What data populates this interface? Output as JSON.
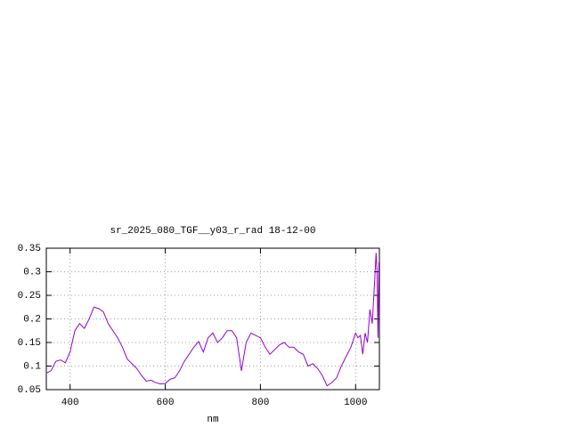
{
  "chart_data": {
    "type": "line",
    "title": "sr_2025_080_TGF__y03_r_rad 18-12-00",
    "x_label": "nm",
    "xlim": [
      350,
      1050
    ],
    "xticks": [
      400,
      600,
      800,
      1000
    ],
    "ylim": [
      0.05,
      0.35
    ],
    "yticks": [
      0.05,
      0.1,
      0.15,
      0.2,
      0.25,
      0.3,
      0.35
    ],
    "grid": true,
    "x": [
      350,
      360,
      370,
      380,
      390,
      400,
      410,
      420,
      430,
      440,
      450,
      460,
      470,
      480,
      490,
      500,
      510,
      520,
      530,
      540,
      550,
      560,
      570,
      580,
      590,
      600,
      610,
      620,
      630,
      640,
      650,
      660,
      670,
      680,
      690,
      700,
      710,
      720,
      730,
      740,
      750,
      760,
      770,
      780,
      790,
      800,
      810,
      820,
      830,
      840,
      850,
      860,
      870,
      880,
      890,
      900,
      910,
      920,
      930,
      940,
      950,
      960,
      970,
      980,
      990,
      1000,
      1005,
      1010,
      1015,
      1020,
      1025,
      1030,
      1035,
      1040,
      1043,
      1045,
      1047,
      1049
    ],
    "series": [
      {
        "name": "y03_r_rad",
        "color": "#9400d3",
        "values": [
          0.085,
          0.09,
          0.11,
          0.113,
          0.107,
          0.13,
          0.175,
          0.19,
          0.18,
          0.2,
          0.225,
          0.222,
          0.215,
          0.19,
          0.175,
          0.16,
          0.14,
          0.115,
          0.105,
          0.095,
          0.08,
          0.068,
          0.07,
          0.065,
          0.062,
          0.063,
          0.072,
          0.075,
          0.09,
          0.11,
          0.125,
          0.14,
          0.152,
          0.13,
          0.16,
          0.17,
          0.15,
          0.16,
          0.175,
          0.175,
          0.16,
          0.09,
          0.15,
          0.17,
          0.165,
          0.16,
          0.14,
          0.125,
          0.135,
          0.145,
          0.15,
          0.14,
          0.14,
          0.13,
          0.125,
          0.1,
          0.105,
          0.095,
          0.08,
          0.058,
          0.065,
          0.075,
          0.1,
          0.12,
          0.14,
          0.17,
          0.16,
          0.165,
          0.125,
          0.17,
          0.15,
          0.22,
          0.19,
          0.28,
          0.34,
          0.3,
          0.16,
          0.32
        ]
      }
    ]
  }
}
